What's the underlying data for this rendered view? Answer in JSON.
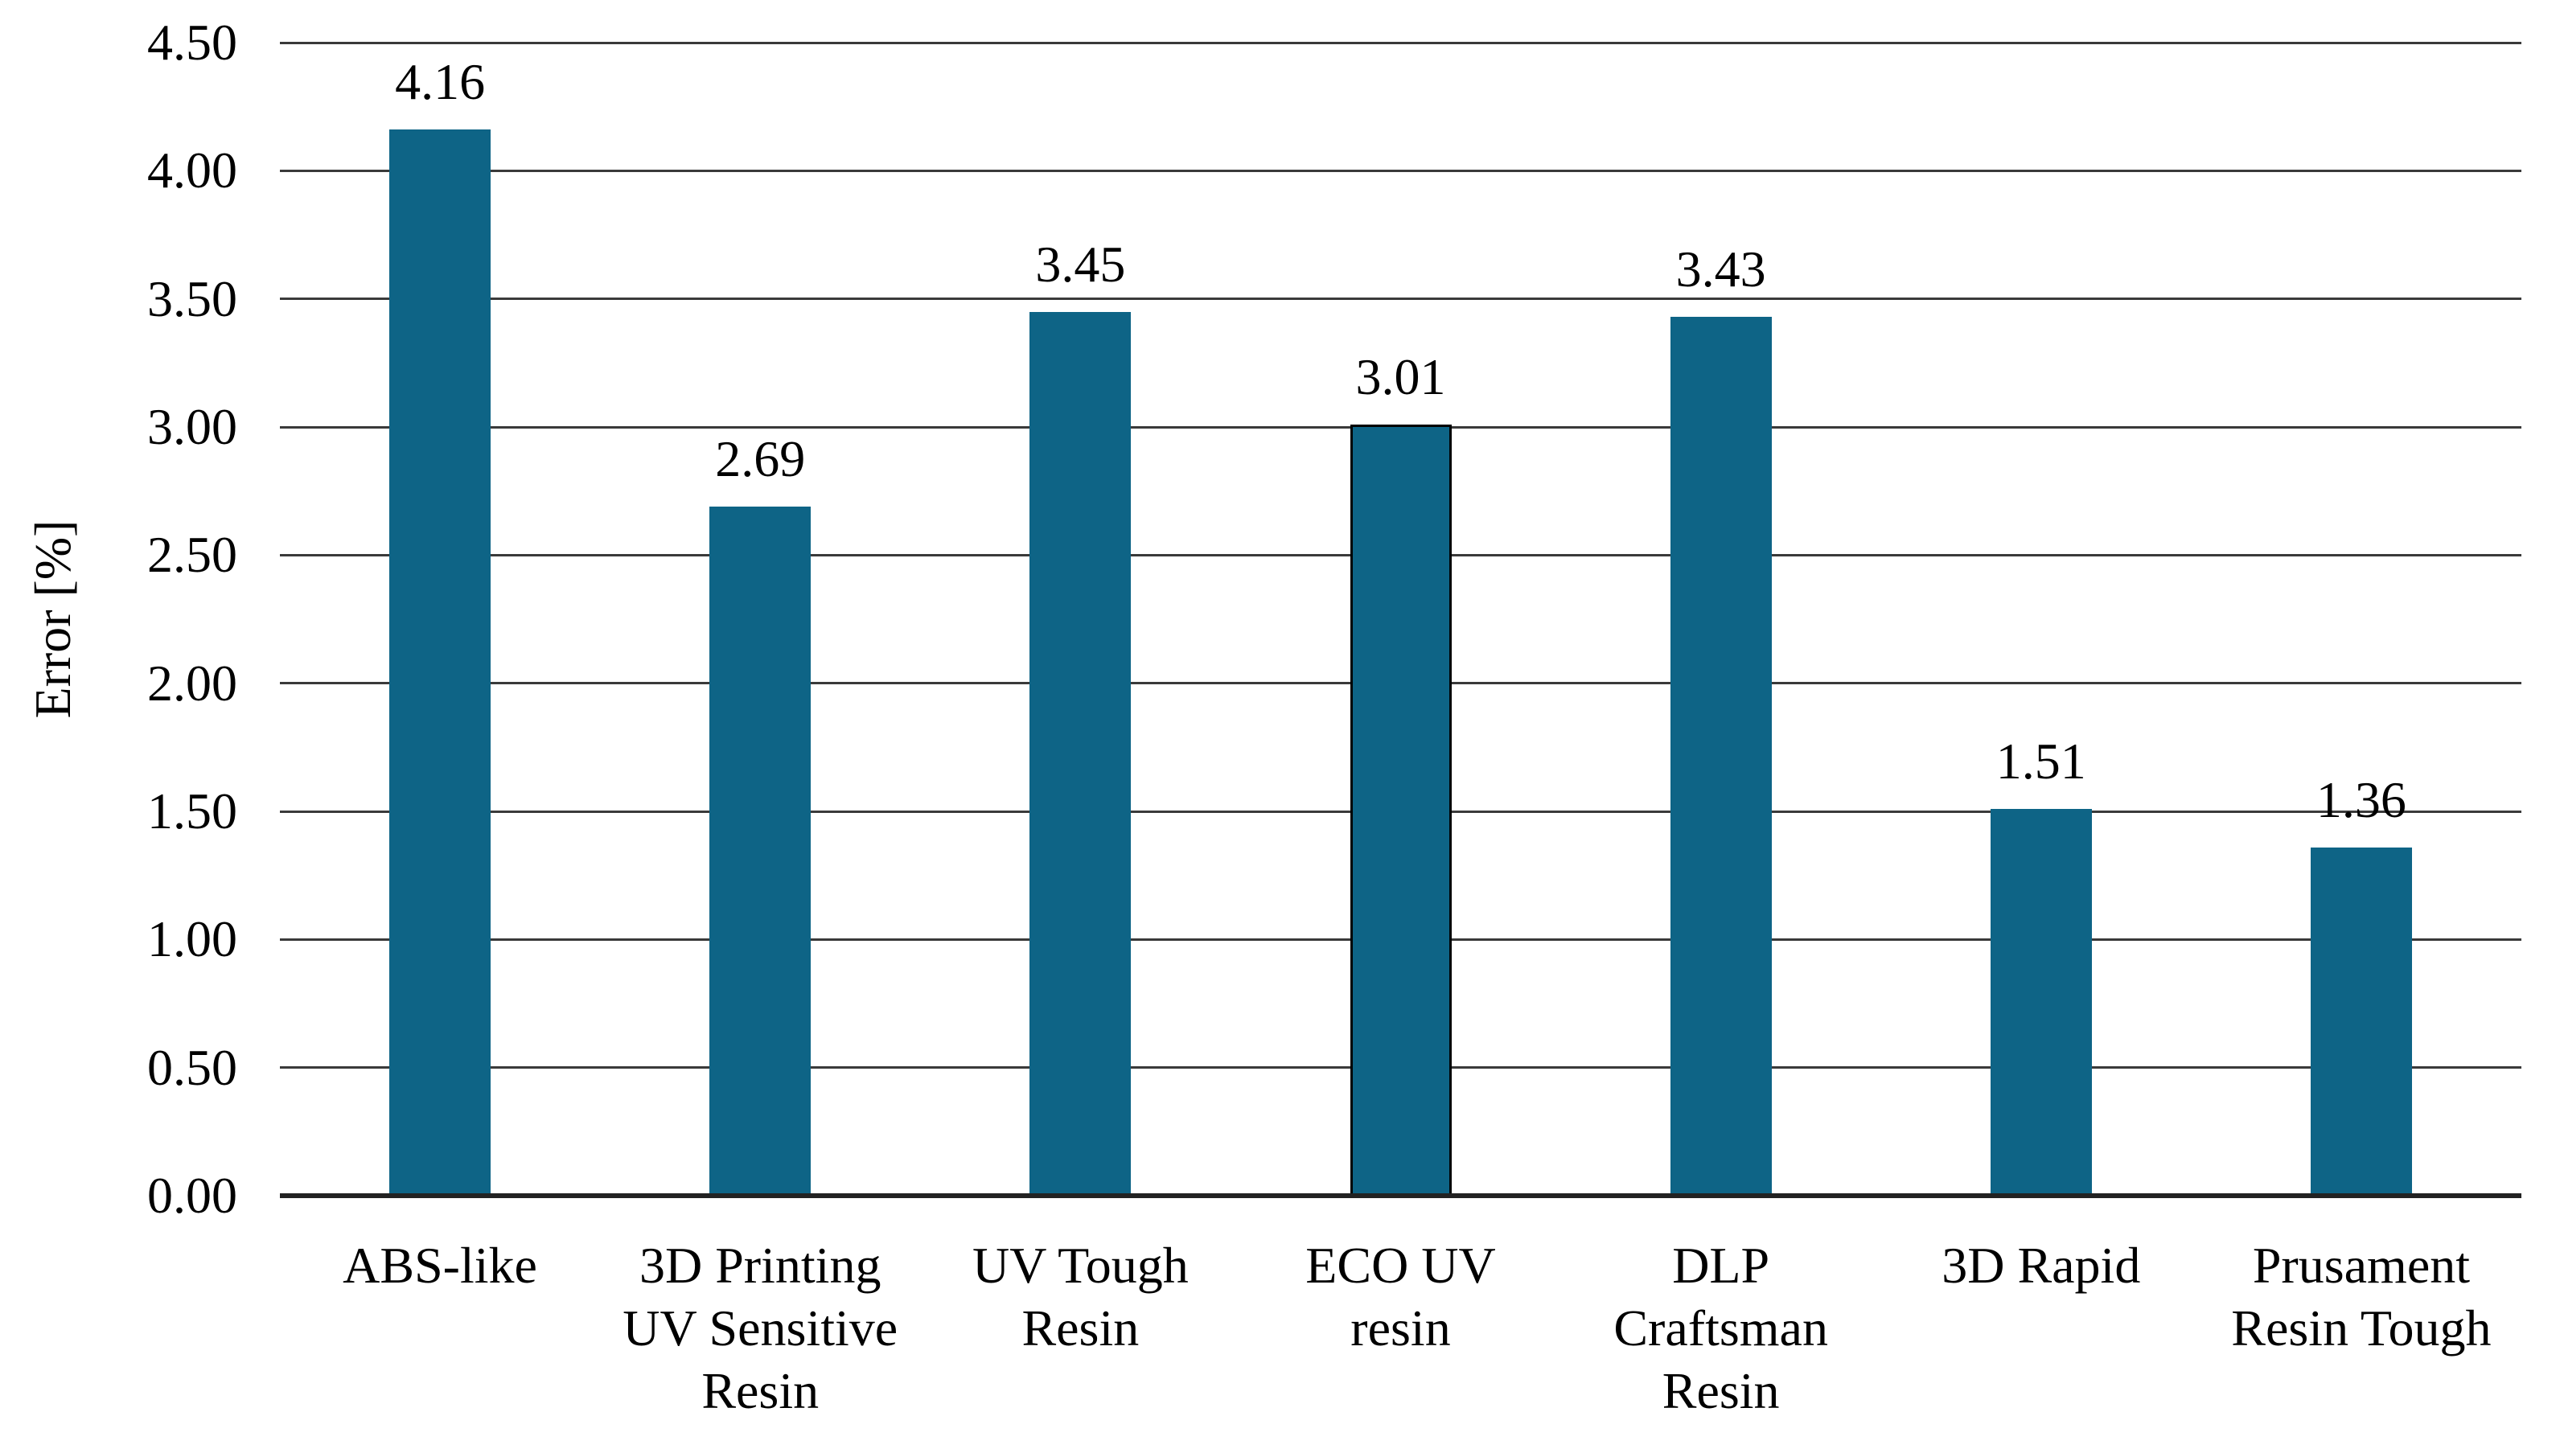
{
  "chart_data": {
    "type": "bar",
    "title": "",
    "xlabel": "",
    "ylabel": "Error [%]",
    "categories": [
      "ABS-like",
      "3D Printing UV Sensitive Resin",
      "UV Tough Resin",
      "ECO UV resin",
      "DLP Craftsman Resin",
      "3D Rapid",
      "Prusament Resin Tough"
    ],
    "category_lines": [
      [
        "ABS-like"
      ],
      [
        "3D Printing",
        "UV Sensitive",
        "Resin"
      ],
      [
        "UV Tough",
        "Resin"
      ],
      [
        "ECO UV",
        "resin"
      ],
      [
        "DLP",
        "Craftsman",
        "Resin"
      ],
      [
        "3D Rapid"
      ],
      [
        "Prusament",
        "Resin Tough"
      ]
    ],
    "values": [
      4.16,
      2.69,
      3.45,
      3.01,
      3.43,
      1.51,
      1.36
    ],
    "value_labels": [
      "4.16",
      "2.69",
      "3.45",
      "3.01",
      "3.43",
      "1.51",
      "1.36"
    ],
    "ylim": [
      0,
      4.5
    ],
    "ytick_step": 0.5,
    "yticks": [
      "0.00",
      "0.50",
      "1.00",
      "1.50",
      "2.00",
      "2.50",
      "3.00",
      "3.50",
      "4.00",
      "4.50"
    ],
    "grid": true,
    "legend": "none",
    "outlined_bar_index": 3,
    "colors": {
      "bar": "#0e6486",
      "bar_outline": "#000000",
      "gridline": "#3a3a3a",
      "axis": "#222222",
      "text": "#000000",
      "background": "#ffffff"
    }
  }
}
